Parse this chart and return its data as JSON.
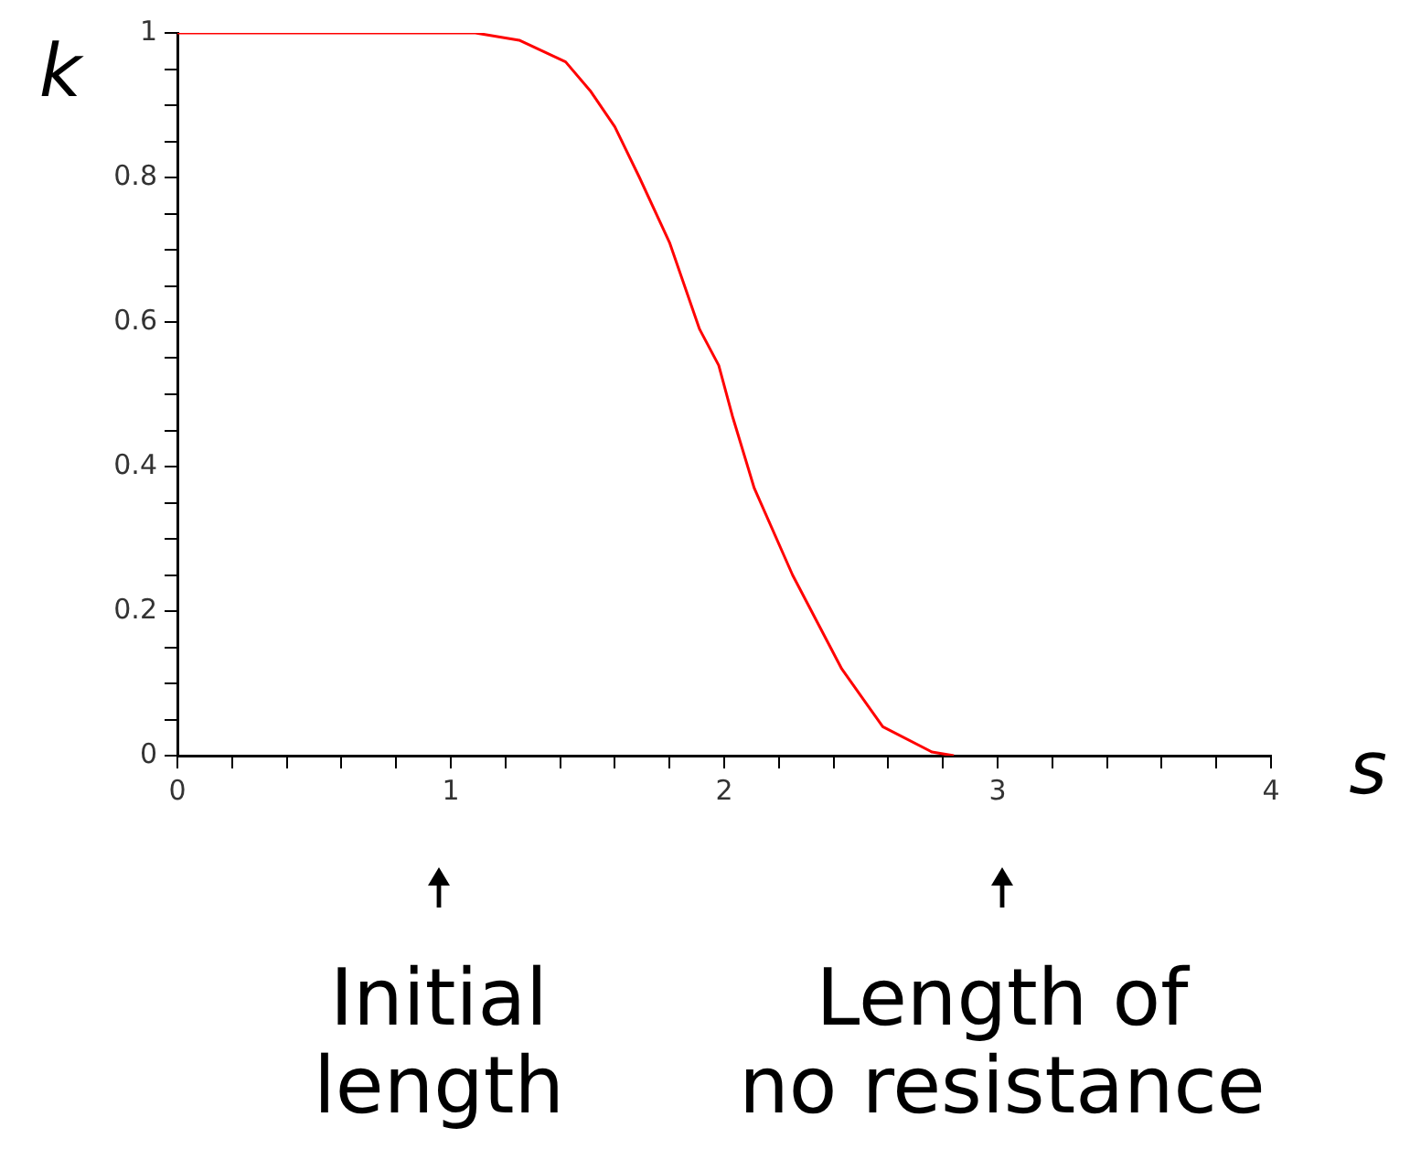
{
  "chart_data": {
    "type": "line",
    "xlabel": "s",
    "ylabel": "k",
    "x": [
      0,
      1.09,
      1.25,
      1.42,
      1.51,
      1.6,
      1.69,
      1.8,
      1.91,
      1.98,
      2.03,
      2.11,
      2.25,
      2.43,
      2.58,
      2.76,
      2.84
    ],
    "series": [
      {
        "color": "#ff0000",
        "values": [
          1,
          1,
          0.99,
          0.96,
          0.92,
          0.87,
          0.8,
          0.71,
          0.59,
          0.54,
          0.47,
          0.37,
          0.25,
          0.12,
          0.04,
          0.005,
          0
        ]
      }
    ],
    "xlim": [
      0,
      4
    ],
    "xticks": [
      0,
      {
        "value": 0.2,
        "label": null
      },
      {
        "value": 0.4,
        "label": null
      },
      {
        "value": 0.6,
        "label": null
      },
      {
        "value": 0.8,
        "label": null
      },
      1,
      {
        "value": 1.2,
        "label": null
      },
      {
        "value": 1.4,
        "label": null
      },
      {
        "value": 1.6,
        "label": null
      },
      {
        "value": 1.8,
        "label": null
      },
      2,
      {
        "value": 2.2,
        "label": null
      },
      {
        "value": 2.4,
        "label": null
      },
      {
        "value": 2.6,
        "label": null
      },
      {
        "value": 2.8,
        "label": null
      },
      3,
      {
        "value": 3.2,
        "label": null
      },
      {
        "value": 3.4,
        "label": null
      },
      {
        "value": 3.6,
        "label": null
      },
      {
        "value": 3.8,
        "label": null
      },
      4
    ],
    "ylim": [
      0,
      1
    ],
    "yticks": [
      0,
      {
        "value": 0.05,
        "label": null
      },
      {
        "value": 0.1,
        "label": null
      },
      {
        "value": 0.15,
        "label": null
      },
      0.2,
      {
        "value": 0.25,
        "label": null
      },
      {
        "value": 0.3,
        "label": null
      },
      {
        "value": 0.35,
        "label": null
      },
      0.4,
      {
        "value": 0.45,
        "label": null
      },
      {
        "value": 0.5,
        "label": null
      },
      {
        "value": 0.55,
        "label": null
      },
      0.6,
      {
        "value": 0.65,
        "label": null
      },
      {
        "value": 0.7,
        "label": null
      },
      {
        "value": 0.75,
        "label": null
      },
      0.8,
      {
        "value": 0.85,
        "label": null
      },
      {
        "value": 0.9,
        "label": null
      },
      {
        "value": 0.95,
        "label": null
      },
      1
    ],
    "grid": false,
    "legend": false,
    "marker": "none",
    "line_style": "solid",
    "annotations": [
      "Initial length",
      "Length of no resistance"
    ]
  }
}
